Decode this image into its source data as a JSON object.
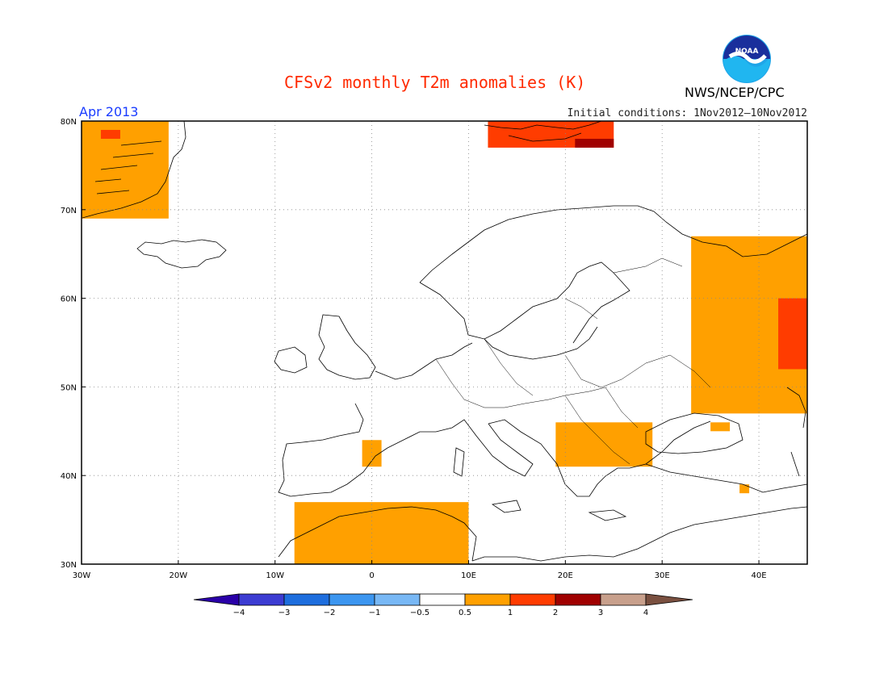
{
  "header": {
    "title": "CFSv2 monthly T2m anomalies (K)",
    "month": "Apr 2013",
    "initial_conditions": "Initial conditions: 1Nov2012–10Nov2012",
    "agency": "NWS/NCEP/CPC",
    "logo_text": "NOAA"
  },
  "map": {
    "lon_range": [
      -30,
      45
    ],
    "lat_range": [
      30,
      80
    ],
    "lon_ticks": [
      "30W",
      "20W",
      "10W",
      "0",
      "10E",
      "20E",
      "30E",
      "40E"
    ],
    "lat_ticks": [
      "30N",
      "40N",
      "50N",
      "60N",
      "70N",
      "80N"
    ],
    "grid": "dotted",
    "anomaly_regions": [
      {
        "name": "Greenland",
        "level": "0.5-1",
        "lon": [
          -30,
          -21
        ],
        "lat": [
          69,
          80
        ]
      },
      {
        "name": "Greenland warm spot",
        "level": "1-2",
        "lon": [
          -28,
          -26
        ],
        "lat": [
          78,
          79
        ]
      },
      {
        "name": "Svalbard",
        "level": "1-2",
        "lon": [
          12,
          25
        ],
        "lat": [
          77,
          80
        ]
      },
      {
        "name": "Svalbard east",
        "level": "2-3",
        "lon": [
          21,
          25
        ],
        "lat": [
          77,
          78
        ]
      },
      {
        "name": "Western Russia",
        "level": "0.5-1",
        "lon": [
          33,
          45
        ],
        "lat": [
          47,
          67
        ]
      },
      {
        "name": "Western Russia warm core",
        "level": "1-2",
        "lon": [
          42,
          45
        ],
        "lat": [
          52,
          60
        ]
      },
      {
        "name": "Balkans / Romania",
        "level": "0.5-1",
        "lon": [
          19,
          29
        ],
        "lat": [
          41,
          46
        ]
      },
      {
        "name": "Northern Spain",
        "level": "0.5-1",
        "lon": [
          -1,
          1
        ],
        "lat": [
          41,
          44
        ]
      },
      {
        "name": "North Africa",
        "level": "0.5-1",
        "lon": [
          -8,
          10
        ],
        "lat": [
          30,
          37
        ]
      },
      {
        "name": "Black Sea coast",
        "level": "0.5-1",
        "lon": [
          35,
          37
        ],
        "lat": [
          45,
          46
        ]
      },
      {
        "name": "Anatolia",
        "level": "0.5-1",
        "lon": [
          38,
          39
        ],
        "lat": [
          38,
          39
        ]
      }
    ]
  },
  "colorbar": {
    "labels": [
      "−4",
      "−3",
      "−2",
      "−1",
      "−0.5",
      "0.5",
      "1",
      "2",
      "3",
      "4"
    ],
    "colors": [
      "#2a00a8",
      "#3c3cd2",
      "#1e6ede",
      "#3c96f0",
      "#78b8f5",
      "#ffffff",
      "#ffa000",
      "#ff3c00",
      "#a00000",
      "#c8a08c",
      "#7a5040"
    ],
    "levels": [
      -4,
      -3,
      -2,
      -1,
      -0.5,
      0.5,
      1,
      2,
      3,
      4
    ]
  }
}
